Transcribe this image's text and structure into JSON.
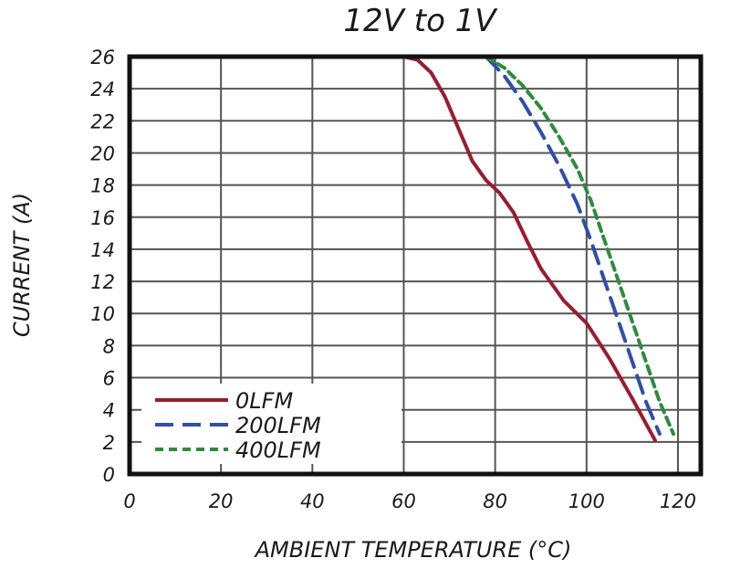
{
  "chart_data": {
    "type": "line",
    "title": "12V to 1V",
    "xlabel": "AMBIENT TEMPERATURE (°C)",
    "ylabel": "CURRENT (A)",
    "xlim": [
      0,
      125
    ],
    "ylim": [
      0,
      26
    ],
    "x_ticks": [
      0,
      20,
      40,
      60,
      80,
      100,
      120
    ],
    "y_ticks": [
      0,
      2,
      4,
      6,
      8,
      10,
      12,
      14,
      16,
      18,
      20,
      22,
      24,
      26
    ],
    "grid": true,
    "legend_position": "bottom-left",
    "series": [
      {
        "name": "0LFM",
        "color": "#9b1b30",
        "dash": "solid",
        "points": [
          [
            60,
            26
          ],
          [
            63,
            25.8
          ],
          [
            66,
            25
          ],
          [
            69,
            23.5
          ],
          [
            72,
            21.5
          ],
          [
            75,
            19.5
          ],
          [
            78,
            18.3
          ],
          [
            81,
            17.5
          ],
          [
            84,
            16.3
          ],
          [
            87,
            14.5
          ],
          [
            90,
            12.8
          ],
          [
            95,
            10.8
          ],
          [
            100,
            9.4
          ],
          [
            105,
            7.2
          ],
          [
            110,
            4.7
          ],
          [
            115,
            2.1
          ]
        ]
      },
      {
        "name": "200LFM",
        "color": "#2f4fa8",
        "dash": "long-dash",
        "points": [
          [
            78,
            26
          ],
          [
            82,
            24.8
          ],
          [
            86,
            23.2
          ],
          [
            90,
            21.3
          ],
          [
            94,
            19.2
          ],
          [
            98,
            16.8
          ],
          [
            101,
            14.5
          ],
          [
            104,
            12
          ],
          [
            107,
            9.5
          ],
          [
            110,
            7
          ],
          [
            113,
            4.5
          ],
          [
            116,
            2.5
          ]
        ]
      },
      {
        "name": "400LFM",
        "color": "#2e8b3e",
        "dash": "short-dash",
        "points": [
          [
            78,
            26
          ],
          [
            82,
            25.3
          ],
          [
            86,
            24.2
          ],
          [
            90,
            22.8
          ],
          [
            94,
            21
          ],
          [
            98,
            19
          ],
          [
            101,
            17
          ],
          [
            104,
            14.5
          ],
          [
            107,
            12
          ],
          [
            110,
            9.5
          ],
          [
            113,
            7
          ],
          [
            116,
            4.5
          ],
          [
            119,
            2.5
          ]
        ]
      }
    ]
  }
}
